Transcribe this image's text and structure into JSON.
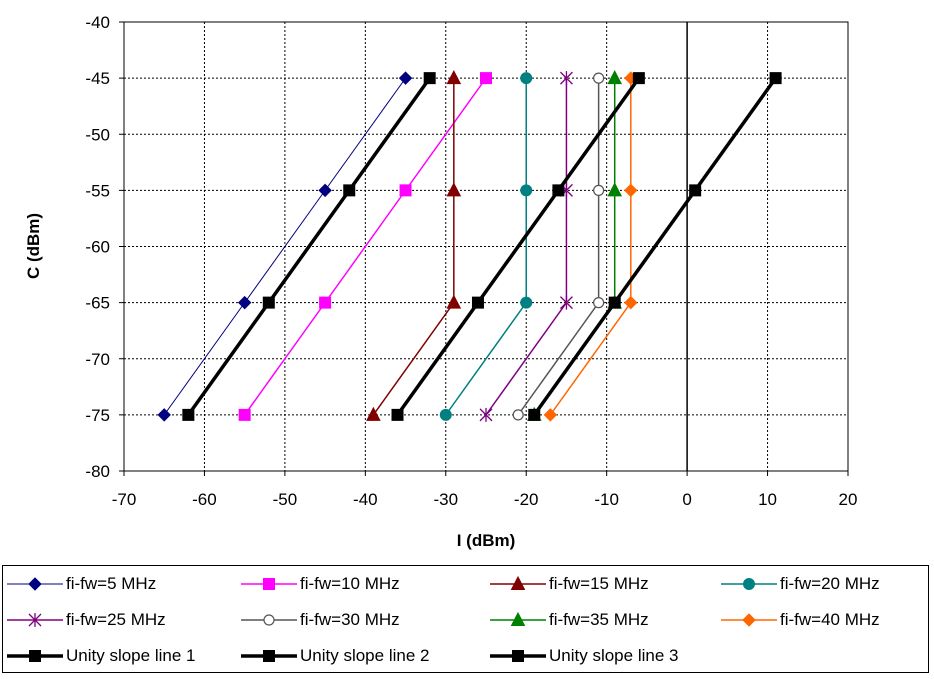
{
  "chart_data": {
    "type": "line",
    "title": "",
    "xlabel": "I (dBm)",
    "ylabel": "C (dBm)",
    "xlim": [
      -70,
      20
    ],
    "ylim": [
      -80,
      -40
    ],
    "xticks": [
      -70,
      -60,
      -50,
      -40,
      -30,
      -20,
      -10,
      0,
      10,
      20
    ],
    "yticks": [
      -40,
      -45,
      -50,
      -55,
      -60,
      -65,
      -70,
      -75,
      -80
    ],
    "grid": "dotted",
    "legend_position": "bottom",
    "series": [
      {
        "name": "fi-fw=5 MHz",
        "color": "#000080",
        "marker": "diamond",
        "width": 1,
        "points": [
          [
            -35,
            -45
          ],
          [
            -45,
            -55
          ],
          [
            -55,
            -65
          ],
          [
            -65,
            -75
          ]
        ]
      },
      {
        "name": "fi-fw=10 MHz",
        "color": "#FF00FF",
        "marker": "square",
        "width": 1.5,
        "points": [
          [
            -25,
            -45
          ],
          [
            -35,
            -55
          ],
          [
            -45,
            -65
          ],
          [
            -55,
            -75
          ]
        ]
      },
      {
        "name": "fi-fw=15 MHz",
        "color": "#800000",
        "marker": "triangle",
        "width": 1.5,
        "points": [
          [
            -29,
            -45
          ],
          [
            -29,
            -55
          ],
          [
            -29,
            -65
          ],
          [
            -39,
            -75
          ]
        ]
      },
      {
        "name": "fi-fw=20 MHz",
        "color": "#008080",
        "marker": "circle",
        "width": 1.5,
        "points": [
          [
            -20,
            -45
          ],
          [
            -20,
            -55
          ],
          [
            -20,
            -65
          ],
          [
            -30,
            -75
          ]
        ]
      },
      {
        "name": "fi-fw=25 MHz",
        "color": "#800080",
        "marker": "star",
        "width": 1.5,
        "points": [
          [
            -15,
            -45
          ],
          [
            -15,
            -55
          ],
          [
            -15,
            -65
          ],
          [
            -25,
            -75
          ]
        ]
      },
      {
        "name": "fi-fw=30 MHz",
        "color": "#555555",
        "marker": "open-circle",
        "width": 1.5,
        "points": [
          [
            -11,
            -45
          ],
          [
            -11,
            -55
          ],
          [
            -11,
            -65
          ],
          [
            -21,
            -75
          ]
        ]
      },
      {
        "name": "fi-fw=35 MHz",
        "color": "#008000",
        "marker": "triangle",
        "width": 1.5,
        "points": [
          [
            -9,
            -45
          ],
          [
            -9,
            -55
          ],
          [
            -9,
            -65
          ],
          [
            -19,
            -75
          ]
        ]
      },
      {
        "name": "fi-fw=40 MHz",
        "color": "#FF6600",
        "marker": "diamond",
        "width": 1.5,
        "points": [
          [
            -7,
            -45
          ],
          [
            -7,
            -55
          ],
          [
            -7,
            -65
          ],
          [
            -17,
            -75
          ]
        ]
      },
      {
        "name": "Unity slope line 1",
        "color": "#000000",
        "marker": "square",
        "width": 3.5,
        "points": [
          [
            -32,
            -45
          ],
          [
            -42,
            -55
          ],
          [
            -52,
            -65
          ],
          [
            -62,
            -75
          ]
        ]
      },
      {
        "name": "Unity slope line 2",
        "color": "#000000",
        "marker": "square",
        "width": 3.5,
        "points": [
          [
            -6,
            -45
          ],
          [
            -16,
            -55
          ],
          [
            -26,
            -65
          ],
          [
            -36,
            -75
          ]
        ]
      },
      {
        "name": "Unity slope line 3",
        "color": "#000000",
        "marker": "square",
        "width": 3.5,
        "points": [
          [
            11,
            -45
          ],
          [
            1,
            -55
          ],
          [
            -9,
            -65
          ],
          [
            -19,
            -75
          ]
        ]
      }
    ]
  }
}
